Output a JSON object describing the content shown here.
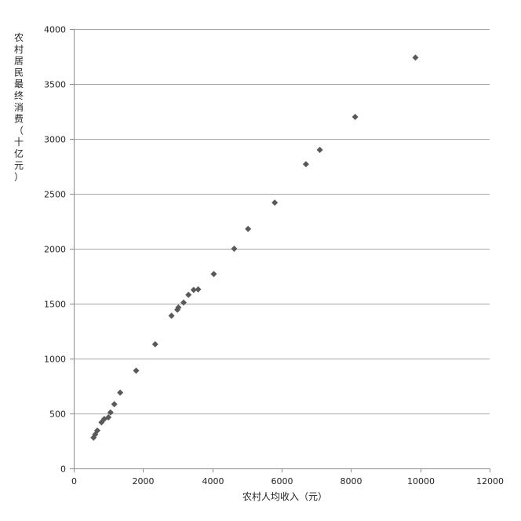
{
  "chart_data": {
    "type": "scatter",
    "title": "",
    "xlabel": "农村人均收入（元）",
    "ylabel_chars": [
      "农",
      "村",
      "居",
      "民",
      "最",
      "终",
      "消",
      "费",
      "（",
      "十",
      "亿",
      "元",
      "）"
    ],
    "ylabel": "农村居民最终消费（十亿元）",
    "xlim": [
      0,
      12000
    ],
    "ylim": [
      0,
      4000
    ],
    "x_ticks": [
      0,
      2000,
      4000,
      6000,
      8000,
      10000,
      12000
    ],
    "y_ticks": [
      0,
      500,
      1000,
      1500,
      2000,
      2500,
      3000,
      3500,
      4000
    ],
    "grid": "horizontal",
    "legend": "none",
    "marker_color": "#595959",
    "points": [
      {
        "x": 570,
        "y": 280
      },
      {
        "x": 620,
        "y": 310
      },
      {
        "x": 680,
        "y": 345
      },
      {
        "x": 800,
        "y": 420
      },
      {
        "x": 880,
        "y": 450
      },
      {
        "x": 1000,
        "y": 465
      },
      {
        "x": 1060,
        "y": 510
      },
      {
        "x": 1170,
        "y": 585
      },
      {
        "x": 1340,
        "y": 690
      },
      {
        "x": 1800,
        "y": 890
      },
      {
        "x": 2350,
        "y": 1130
      },
      {
        "x": 2820,
        "y": 1390
      },
      {
        "x": 2990,
        "y": 1445
      },
      {
        "x": 3020,
        "y": 1465
      },
      {
        "x": 3170,
        "y": 1510
      },
      {
        "x": 3310,
        "y": 1580
      },
      {
        "x": 3460,
        "y": 1625
      },
      {
        "x": 3590,
        "y": 1630
      },
      {
        "x": 4040,
        "y": 1770
      },
      {
        "x": 4630,
        "y": 2000
      },
      {
        "x": 5030,
        "y": 2180
      },
      {
        "x": 5800,
        "y": 2420
      },
      {
        "x": 6700,
        "y": 2770
      },
      {
        "x": 7100,
        "y": 2900
      },
      {
        "x": 8120,
        "y": 3200
      },
      {
        "x": 9860,
        "y": 3740
      }
    ]
  }
}
